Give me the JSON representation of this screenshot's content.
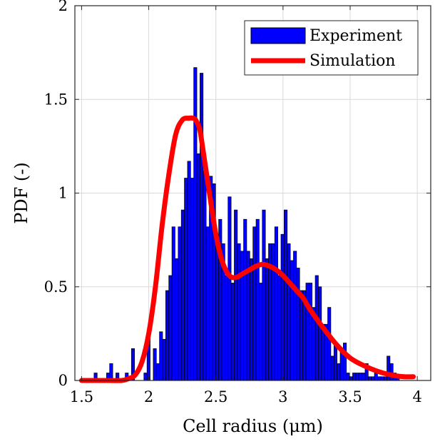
{
  "chart_data": {
    "type": "bar",
    "xlabel": "Cell radius (μm)",
    "ylabel": "PDF (-)",
    "xlim": [
      1.45,
      4.1
    ],
    "ylim": [
      0,
      2
    ],
    "xticks": [
      1.5,
      2,
      2.5,
      3,
      3.5,
      4
    ],
    "xtick_labels": [
      "1.5",
      "2",
      "2.5",
      "3",
      "3.5",
      "4"
    ],
    "yticks": [
      0,
      0.5,
      1,
      1.5,
      2
    ],
    "ytick_labels": [
      "0",
      "0.5",
      "1",
      "1.5",
      "2"
    ],
    "grid": true,
    "legend_position": "top-right",
    "colors": {
      "bars": "#0000ff",
      "bar_edge": "#000000",
      "curve": "#ff0000"
    },
    "series": [
      {
        "name": "Experiment",
        "type": "bar",
        "bin_width": 0.0232,
        "bin_start": 1.5,
        "values": [
          0,
          0,
          0,
          0,
          0.04,
          0,
          0,
          0,
          0.04,
          0.09,
          0,
          0.04,
          0,
          0,
          0.04,
          0,
          0.17,
          0,
          0,
          0,
          0.04,
          0.26,
          0,
          0.17,
          0.09,
          0.26,
          0.22,
          0.48,
          0.56,
          0.82,
          0.65,
          0.82,
          0.91,
          1.08,
          1.17,
          1.08,
          1.67,
          1.21,
          1.64,
          1.12,
          0.82,
          1.09,
          1.05,
          0.78,
          0.86,
          0.73,
          0.56,
          0.98,
          0.52,
          0.91,
          0.73,
          0.69,
          0.86,
          0.69,
          0.65,
          0.82,
          0.86,
          0.52,
          0.91,
          0.65,
          0.73,
          0.73,
          0.82,
          0.56,
          0.78,
          0.91,
          0.73,
          0.64,
          0.69,
          0.6,
          0.48,
          0.48,
          0.52,
          0.52,
          0.39,
          0.56,
          0.5,
          0.3,
          0.3,
          0.39,
          0.13,
          0.2,
          0.09,
          0.16,
          0.2,
          0.04,
          0.02,
          0.04,
          0.04,
          0.04,
          0.04,
          0.09,
          0.02,
          0.02,
          0.04,
          0.02,
          0.02,
          0.02,
          0.13,
          0.09,
          0.04,
          0.02
        ]
      },
      {
        "name": "Simulation",
        "type": "line",
        "x": [
          1.5,
          1.6,
          1.7,
          1.8,
          1.85,
          1.9,
          1.95,
          2.0,
          2.05,
          2.1,
          2.15,
          2.2,
          2.25,
          2.3,
          2.33,
          2.35,
          2.38,
          2.4,
          2.45,
          2.5,
          2.55,
          2.6,
          2.65,
          2.7,
          2.75,
          2.8,
          2.85,
          2.9,
          2.95,
          3.0,
          3.05,
          3.1,
          3.15,
          3.2,
          3.3,
          3.4,
          3.5,
          3.6,
          3.7,
          3.8,
          3.9,
          3.97
        ],
        "y": [
          0,
          0,
          0,
          0,
          0.01,
          0.03,
          0.1,
          0.25,
          0.5,
          0.83,
          1.1,
          1.31,
          1.39,
          1.4,
          1.4,
          1.39,
          1.34,
          1.25,
          1.01,
          0.78,
          0.63,
          0.56,
          0.55,
          0.57,
          0.59,
          0.61,
          0.62,
          0.61,
          0.59,
          0.56,
          0.52,
          0.48,
          0.44,
          0.38,
          0.28,
          0.19,
          0.12,
          0.08,
          0.05,
          0.03,
          0.02,
          0.02
        ]
      }
    ]
  }
}
